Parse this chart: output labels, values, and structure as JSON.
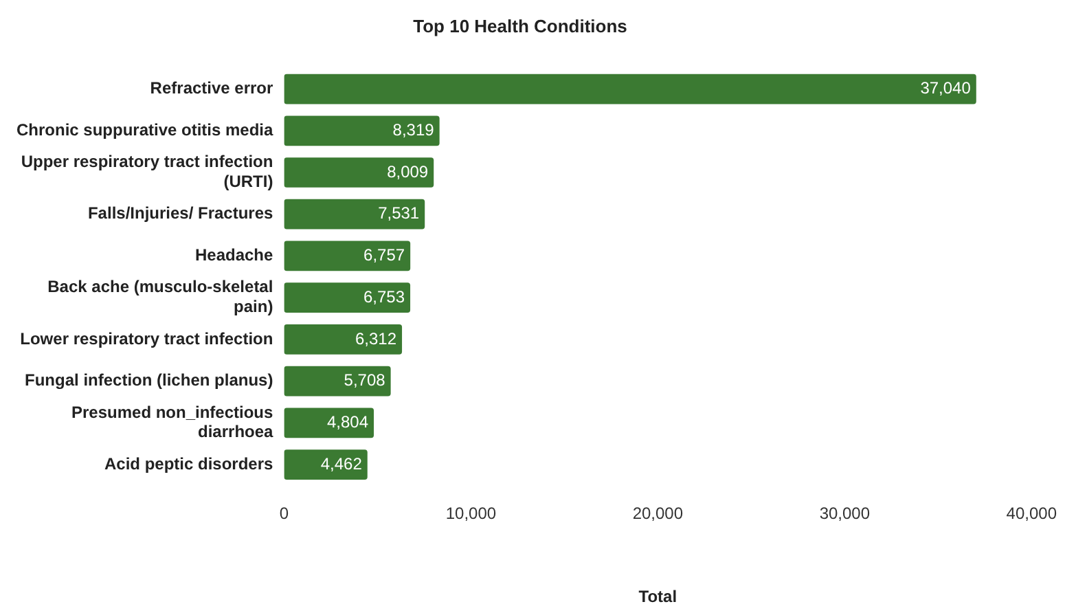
{
  "chart_data": {
    "type": "bar",
    "orientation": "horizontal",
    "title": "Top 10 Health Conditions",
    "xlabel": "Total",
    "categories": [
      "Refractive error",
      "Chronic suppurative otitis media",
      "Upper respiratory tract infection (URTI)",
      "Falls/Injuries/ Fractures",
      "Headache",
      "Back ache (musculo-skeletal pain)",
      "Lower respiratory tract infection",
      "Fungal infection (lichen planus)",
      "Presumed non_infectious diarrhoea",
      "Acid peptic disorders"
    ],
    "values": [
      37040,
      8319,
      8009,
      7531,
      6757,
      6753,
      6312,
      5708,
      4804,
      4462
    ],
    "value_labels": [
      "37,040",
      "8,319",
      "8,009",
      "7,531",
      "6,757",
      "6,753",
      "6,312",
      "5,708",
      "4,804",
      "4,462"
    ],
    "color": "#3b7a32",
    "xlim": [
      0,
      40000
    ],
    "xticks": [
      0,
      {
        "value": 10000,
        "label": "10,000"
      },
      {
        "value": 20000,
        "label": "20,000"
      },
      {
        "value": 30000,
        "label": "30,000"
      },
      {
        "value": 40000,
        "label": "40,000"
      }
    ],
    "grid": false,
    "legend": false
  }
}
